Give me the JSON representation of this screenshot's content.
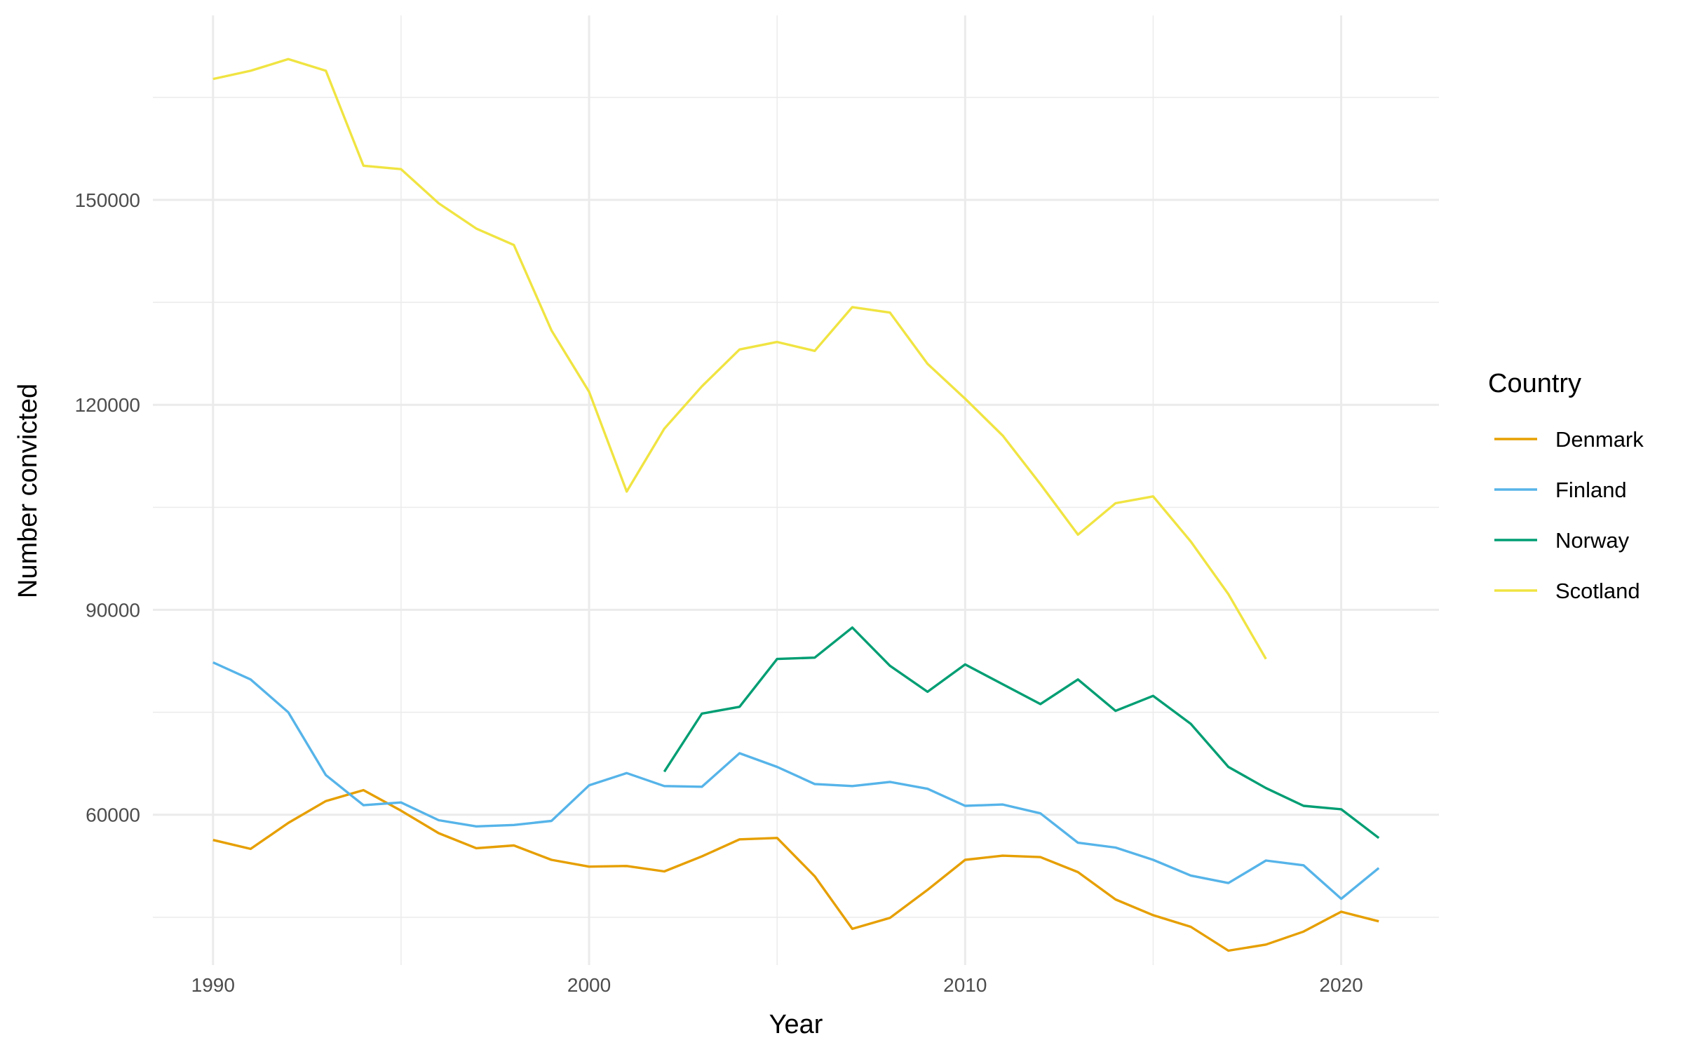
{
  "chart_data": {
    "type": "line",
    "title": "",
    "xlabel": "Year",
    "ylabel": "Number convicted",
    "xlim": [
      1988.4,
      2022.6
    ],
    "ylim": [
      38000,
      177000
    ],
    "x_ticks": [
      1990,
      2000,
      2010,
      2020
    ],
    "x_tick_labels": [
      "1990",
      "2000",
      "2010",
      "2020"
    ],
    "x_minor_ticks": [
      1995,
      2005,
      2015
    ],
    "y_ticks": [
      60000,
      90000,
      120000,
      150000
    ],
    "y_tick_labels": [
      "60000",
      "90000",
      "120000",
      "150000"
    ],
    "y_minor_ticks": [
      45000,
      75000,
      105000,
      135000,
      165000
    ],
    "grid": true,
    "legend": {
      "title": "Country",
      "position": "right"
    },
    "series": [
      {
        "name": "Denmark",
        "color": "#E69F00",
        "x": [
          1990,
          1991,
          1992,
          1993,
          1994,
          1995,
          1996,
          1997,
          1998,
          1999,
          2000,
          2001,
          2002,
          2003,
          2004,
          2005,
          2006,
          2007,
          2008,
          2009,
          2010,
          2011,
          2012,
          2013,
          2014,
          2015,
          2016,
          2017,
          2018,
          2019,
          2020,
          2021
        ],
        "values": [
          56300,
          55000,
          58800,
          62000,
          63600,
          60600,
          57300,
          55100,
          55500,
          53400,
          52400,
          52500,
          51700,
          53900,
          56400,
          56600,
          51000,
          43300,
          44900,
          49000,
          53400,
          54000,
          53800,
          51600,
          47600,
          45300,
          43600,
          40100,
          41000,
          42900,
          45800,
          44400
        ]
      },
      {
        "name": "Finland",
        "color": "#56B4E9",
        "x": [
          1990,
          1991,
          1992,
          1993,
          1994,
          1995,
          1996,
          1997,
          1998,
          1999,
          2000,
          2001,
          2002,
          2003,
          2004,
          2005,
          2006,
          2007,
          2008,
          2009,
          2010,
          2011,
          2012,
          2013,
          2014,
          2015,
          2016,
          2017,
          2018,
          2019,
          2020,
          2021
        ],
        "values": [
          82300,
          79800,
          75000,
          65800,
          61400,
          61800,
          59200,
          58300,
          58500,
          59100,
          64300,
          66100,
          64200,
          64100,
          69000,
          67000,
          64500,
          64200,
          64800,
          63800,
          61300,
          61500,
          60200,
          55900,
          55200,
          53400,
          51100,
          50000,
          53300,
          52600,
          47700,
          52200
        ]
      },
      {
        "name": "Norway",
        "color": "#009E73",
        "x": [
          2002,
          2003,
          2004,
          2005,
          2006,
          2007,
          2008,
          2009,
          2010,
          2011,
          2012,
          2013,
          2014,
          2015,
          2016,
          2017,
          2018,
          2019,
          2020,
          2021
        ],
        "values": [
          66300,
          74800,
          75800,
          82800,
          83000,
          87400,
          81800,
          78000,
          82000,
          79100,
          76200,
          79800,
          75200,
          77400,
          73300,
          67000,
          63900,
          61300,
          60800,
          56600
        ]
      },
      {
        "name": "Scotland",
        "color": "#F0E442",
        "x": [
          1990,
          1991,
          1992,
          1993,
          1994,
          1995,
          1996,
          1997,
          1998,
          1999,
          2000,
          2001,
          2002,
          2003,
          2004,
          2005,
          2006,
          2007,
          2008,
          2009,
          2010,
          2011,
          2012,
          2013,
          2014,
          2015,
          2016,
          2017,
          2018
        ],
        "values": [
          167700,
          168900,
          170600,
          168900,
          155000,
          154500,
          149500,
          145800,
          143400,
          130900,
          121900,
          107300,
          116500,
          122700,
          128100,
          129200,
          127900,
          134300,
          133500,
          126000,
          120900,
          115500,
          108400,
          101000,
          105600,
          106600,
          100000,
          92300,
          82800
        ]
      }
    ]
  }
}
